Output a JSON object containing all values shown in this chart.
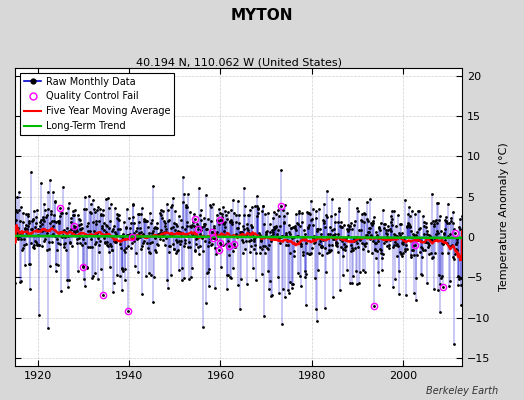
{
  "title": "MYTON",
  "subtitle": "40.194 N, 110.062 W (United States)",
  "ylabel": "Temperature Anomaly (°C)",
  "credit": "Berkeley Earth",
  "ylim": [
    -16,
    21
  ],
  "yticks": [
    -15,
    -10,
    -5,
    0,
    5,
    10,
    15,
    20
  ],
  "xlim": [
    1915,
    2013
  ],
  "xticks": [
    1920,
    1940,
    1960,
    1980,
    2000
  ],
  "start_year": 1915,
  "end_year": 2012,
  "seed": 17,
  "raw_color": "#0000cc",
  "qc_color": "#ff00ff",
  "moving_avg_color": "#ff0000",
  "trend_color": "#00bb00",
  "background_color": "#d8d8d8",
  "plot_bg_color": "#ffffff",
  "grid_color": "#b0b0b0"
}
